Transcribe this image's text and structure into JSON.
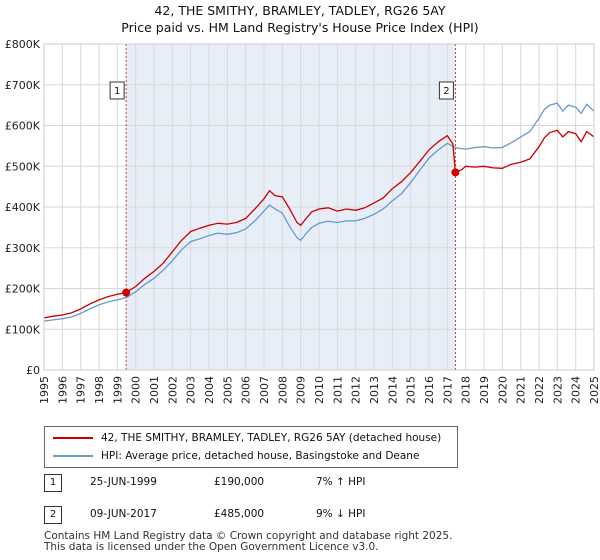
{
  "title_line1": "42, THE SMITHY, BRAMLEY, TADLEY, RG26 5AY",
  "title_line2": "Price paid vs. HM Land Registry's House Price Index (HPI)",
  "colors": {
    "property": "#cc0000",
    "hpi": "#6699cc",
    "shade": "#e8eef8",
    "grid": "#d8d8d8",
    "vline": "#cc3333"
  },
  "chart_data": {
    "type": "line",
    "title": "42, THE SMITHY, BRAMLEY, TADLEY, RG26 5AY — Price paid vs. HM Land Registry's House Price Index (HPI)",
    "xlim": [
      1995,
      2025
    ],
    "ylim": [
      0,
      800000
    ],
    "y_ticks": [
      {
        "value": 0,
        "label": "£0"
      },
      {
        "value": 100000,
        "label": "£100K"
      },
      {
        "value": 200000,
        "label": "£200K"
      },
      {
        "value": 300000,
        "label": "£300K"
      },
      {
        "value": 400000,
        "label": "£400K"
      },
      {
        "value": 500000,
        "label": "£500K"
      },
      {
        "value": 600000,
        "label": "£600K"
      },
      {
        "value": 700000,
        "label": "£700K"
      },
      {
        "value": 800000,
        "label": "£800K"
      }
    ],
    "x_ticks": [
      "1995",
      "1996",
      "1997",
      "1998",
      "1999",
      "2000",
      "2001",
      "2002",
      "2003",
      "2004",
      "2005",
      "2006",
      "2007",
      "2008",
      "2009",
      "2010",
      "2011",
      "2012",
      "2013",
      "2014",
      "2015",
      "2016",
      "2017",
      "2018",
      "2019",
      "2020",
      "2021",
      "2022",
      "2023",
      "2024",
      "2025"
    ],
    "shaded_range": [
      1999.48,
      2017.44
    ],
    "series": [
      {
        "name": "42, THE SMITHY, BRAMLEY, TADLEY, RG26 5AY (detached house)",
        "x": [
          1995,
          1995.5,
          1996,
          1996.5,
          1997,
          1997.5,
          1998,
          1998.5,
          1999,
          1999.48,
          2000,
          2000.5,
          2001,
          2001.5,
          2002,
          2002.5,
          2003,
          2003.5,
          2004,
          2004.5,
          2005,
          2005.5,
          2006,
          2006.5,
          2007,
          2007.3,
          2007.6,
          2008,
          2008.4,
          2008.8,
          2009,
          2009.3,
          2009.6,
          2010,
          2010.5,
          2011,
          2011.5,
          2012,
          2012.5,
          2013,
          2013.5,
          2014,
          2014.5,
          2015,
          2015.5,
          2016,
          2016.5,
          2017,
          2017.3,
          2017.44,
          2017.8,
          2018,
          2018.5,
          2019,
          2019.5,
          2020,
          2020.5,
          2021,
          2021.5,
          2022,
          2022.3,
          2022.6,
          2023,
          2023.3,
          2023.6,
          2024,
          2024.3,
          2024.6,
          2025
        ],
        "values": [
          128000,
          132000,
          135000,
          140000,
          150000,
          162000,
          172000,
          180000,
          186000,
          190000,
          205000,
          225000,
          242000,
          262000,
          290000,
          318000,
          340000,
          348000,
          355000,
          360000,
          358000,
          362000,
          372000,
          395000,
          420000,
          440000,
          428000,
          425000,
          395000,
          362000,
          355000,
          372000,
          388000,
          395000,
          398000,
          390000,
          395000,
          392000,
          398000,
          410000,
          422000,
          445000,
          462000,
          485000,
          512000,
          540000,
          560000,
          575000,
          555000,
          485000,
          492000,
          500000,
          498000,
          500000,
          496000,
          495000,
          505000,
          510000,
          518000,
          548000,
          570000,
          583000,
          588000,
          572000,
          585000,
          580000,
          560000,
          585000,
          572000
        ]
      },
      {
        "name": "HPI: Average price, detached house, Basingstoke and Deane",
        "x": [
          1995,
          1995.5,
          1996,
          1996.5,
          1997,
          1997.5,
          1998,
          1998.5,
          1999,
          1999.5,
          2000,
          2000.5,
          2001,
          2001.5,
          2002,
          2002.5,
          2003,
          2003.5,
          2004,
          2004.5,
          2005,
          2005.5,
          2006,
          2006.5,
          2007,
          2007.3,
          2007.6,
          2008,
          2008.4,
          2008.8,
          2009,
          2009.3,
          2009.6,
          2010,
          2010.5,
          2011,
          2011.5,
          2012,
          2012.5,
          2013,
          2013.5,
          2014,
          2014.5,
          2015,
          2015.5,
          2016,
          2016.5,
          2017,
          2017.5,
          2018,
          2018.5,
          2019,
          2019.5,
          2020,
          2020.5,
          2021,
          2021.5,
          2022,
          2022.3,
          2022.6,
          2023,
          2023.3,
          2023.6,
          2024,
          2024.3,
          2024.6,
          2025
        ],
        "values": [
          120000,
          123000,
          126000,
          130000,
          139000,
          150000,
          160000,
          167000,
          172000,
          178000,
          192000,
          210000,
          225000,
          245000,
          268000,
          295000,
          315000,
          322000,
          330000,
          336000,
          333000,
          337000,
          346000,
          366000,
          390000,
          405000,
          395000,
          385000,
          352000,
          325000,
          318000,
          335000,
          350000,
          360000,
          365000,
          362000,
          366000,
          366000,
          372000,
          382000,
          395000,
          415000,
          433000,
          460000,
          490000,
          520000,
          540000,
          556000,
          545000,
          542000,
          546000,
          548000,
          545000,
          546000,
          558000,
          572000,
          585000,
          618000,
          640000,
          650000,
          655000,
          635000,
          650000,
          645000,
          630000,
          652000,
          635000
        ]
      }
    ],
    "sales": [
      {
        "id": "1",
        "x": 1999.48,
        "price": 190000
      },
      {
        "id": "2",
        "x": 2017.44,
        "price": 485000
      }
    ]
  },
  "legend": {
    "property_label": "42, THE SMITHY, BRAMLEY, TADLEY, RG26 5AY (detached house)",
    "hpi_label": "HPI: Average price, detached house, Basingstoke and Deane"
  },
  "sales_table": [
    {
      "id": "1",
      "date": "25-JUN-1999",
      "price": "£190,000",
      "hpi": "7% ↑ HPI"
    },
    {
      "id": "2",
      "date": "09-JUN-2017",
      "price": "£485,000",
      "hpi": "9% ↓ HPI"
    }
  ],
  "footer_line1": "Contains HM Land Registry data © Crown copyright and database right 2025.",
  "footer_line2": "This data is licensed under the Open Government Licence v3.0."
}
